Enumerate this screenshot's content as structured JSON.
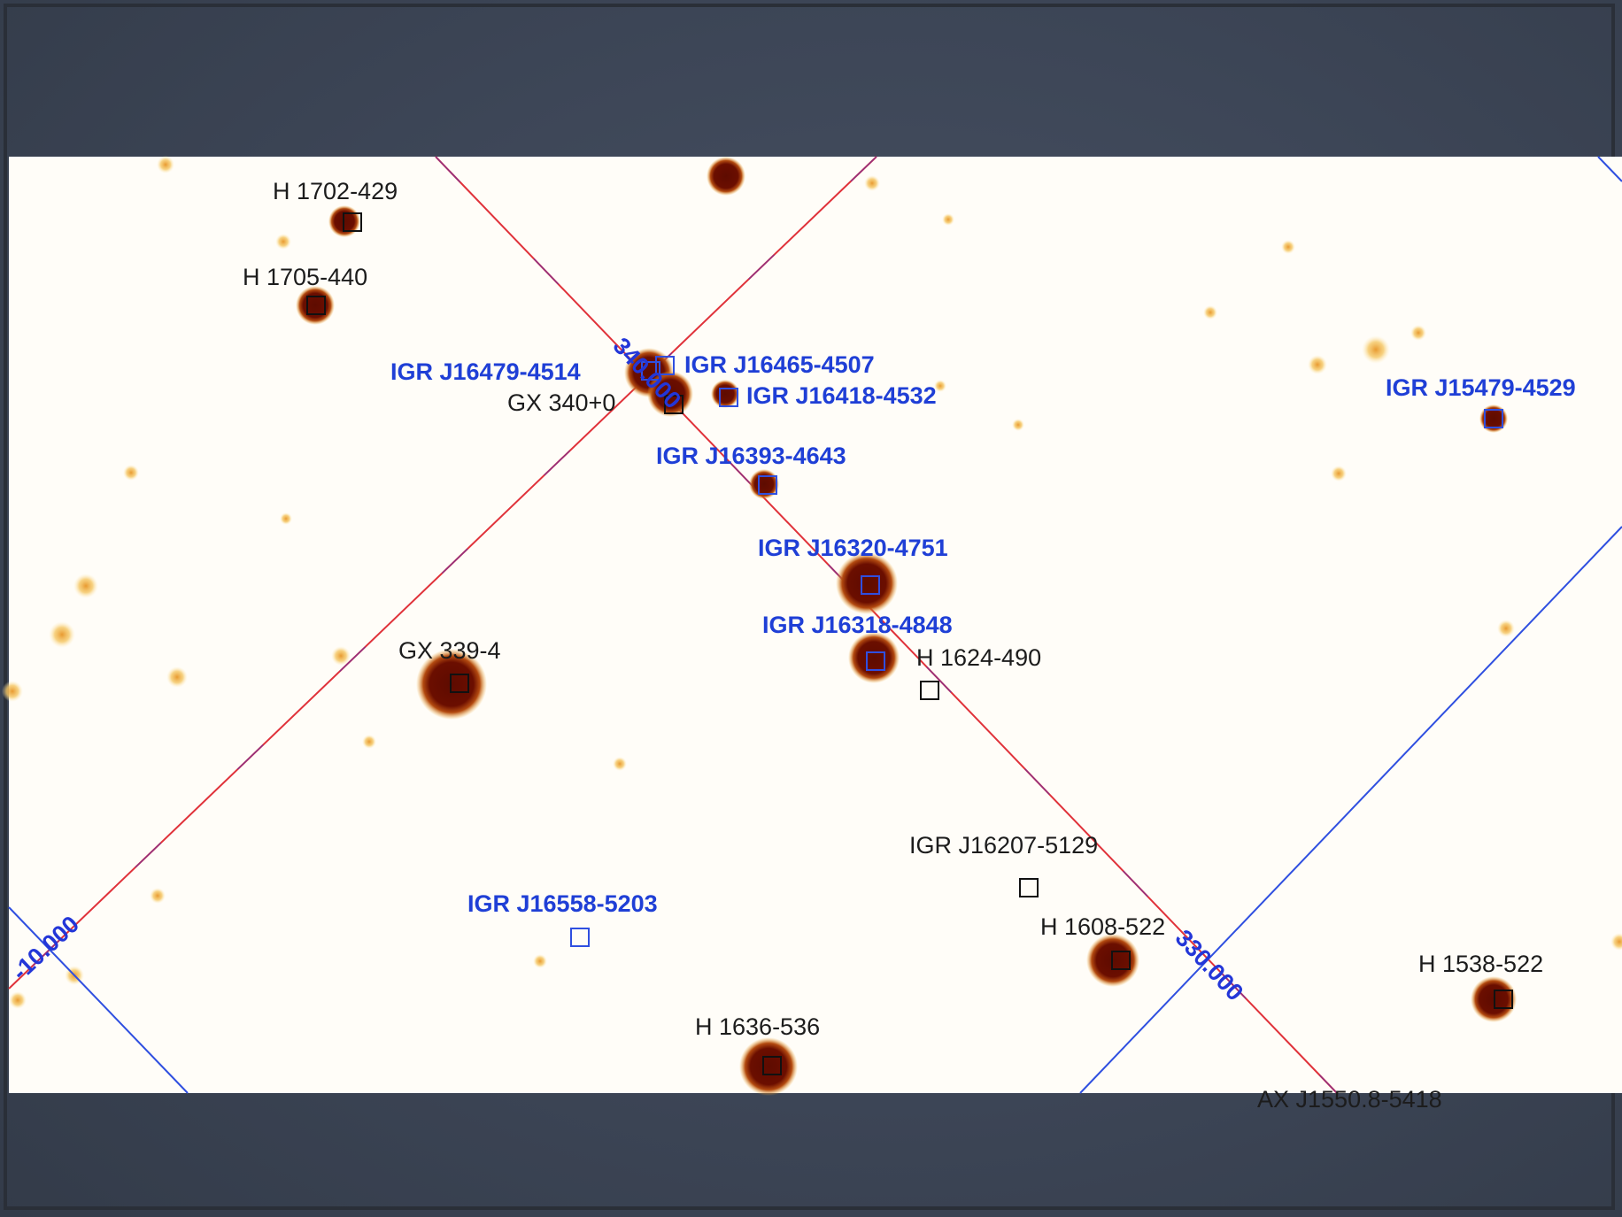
{
  "sources": [
    {
      "name": "H 1702-429",
      "color": "black"
    },
    {
      "name": "H 1705-440",
      "color": "black"
    },
    {
      "name": "IGR J16479-4514",
      "color": "blue"
    },
    {
      "name": "IGR J16465-4507",
      "color": "blue"
    },
    {
      "name": "GX 340+0",
      "color": "black"
    },
    {
      "name": "IGR J16418-4532",
      "color": "blue"
    },
    {
      "name": "IGR J16393-4643",
      "color": "blue"
    },
    {
      "name": "IGR J15479-4529",
      "color": "blue"
    },
    {
      "name": "IGR J16320-4751",
      "color": "blue"
    },
    {
      "name": "IGR J16318-4848",
      "color": "blue"
    },
    {
      "name": "H 1624-490",
      "color": "black"
    },
    {
      "name": "GX 339-4",
      "color": "black"
    },
    {
      "name": "IGR J16207-5129",
      "color": "black"
    },
    {
      "name": "IGR J16558-5203",
      "color": "blue"
    },
    {
      "name": "H 1608-522",
      "color": "black"
    },
    {
      "name": "H 1538-522",
      "color": "black"
    },
    {
      "name": "H 1636-536",
      "color": "black"
    },
    {
      "name": "AX J1550.8-5418",
      "color": "black"
    }
  ],
  "grid_labels": [
    "340.000",
    "330.000",
    "-10.000"
  ],
  "colors": {
    "background": "#3c4656",
    "map_background": "#fffdf8",
    "hotspot_dark": "#6b0e00",
    "hotspot_light": "#f2b03a",
    "grid_red": "#e0323a",
    "grid_blue": "#2f4fe0",
    "label_blue": "#1f3fd6",
    "label_black": "#1c1c1c"
  }
}
